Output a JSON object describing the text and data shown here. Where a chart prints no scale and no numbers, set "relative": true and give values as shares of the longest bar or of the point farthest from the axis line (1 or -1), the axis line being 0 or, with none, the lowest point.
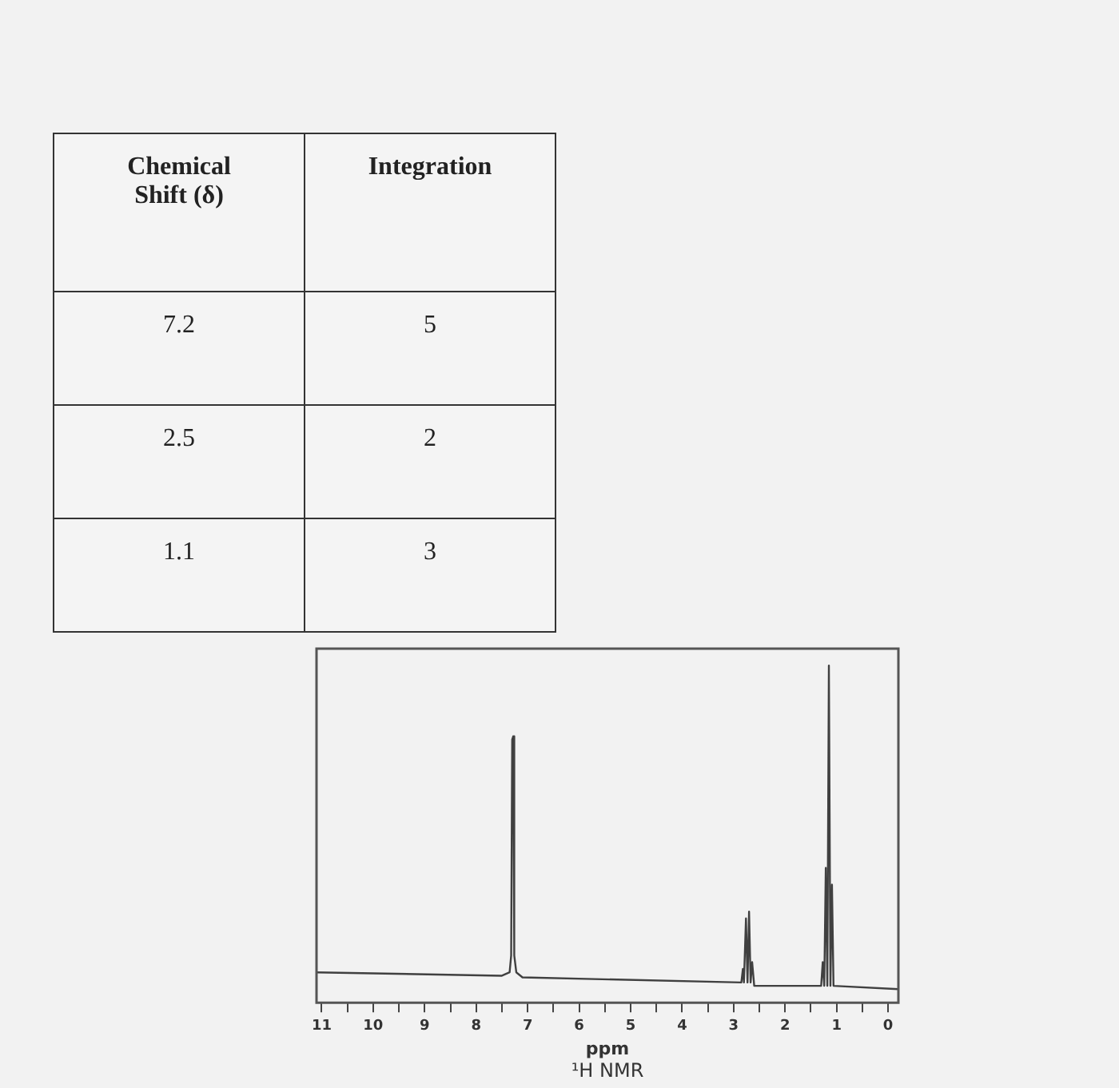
{
  "chart_data": [
    {
      "type": "other",
      "annotations": [
        "Chemical Shift (δ)",
        "Integration",
        "7.2",
        "5",
        "2.5",
        "2",
        "1.1",
        "3"
      ]
    },
    {
      "type": "line",
      "title": "¹H NMR",
      "xlabel": "ppm",
      "relative": true,
      "color": "#404040",
      "marker": "none",
      "x": [
        11.1,
        7.5,
        7.35,
        7.32,
        7.3,
        7.28,
        7.26,
        7.22,
        7.1,
        2.85,
        2.82,
        2.8,
        2.76,
        2.73,
        2.7,
        2.67,
        2.64,
        2.6,
        1.3,
        1.27,
        1.24,
        1.21,
        1.18,
        1.15,
        1.12,
        1.09,
        1.06,
        -0.2
      ],
      "values": [
        0.09,
        0.08,
        0.09,
        0.14,
        0.78,
        0.79,
        0.14,
        0.09,
        0.075,
        0.06,
        0.1,
        0.06,
        0.25,
        0.06,
        0.27,
        0.06,
        0.12,
        0.05,
        0.05,
        0.12,
        0.05,
        0.4,
        0.05,
        1.0,
        0.05,
        0.35,
        0.05,
        0.04
      ],
      "xlim": [
        11.1,
        -0.2
      ],
      "xticks": [
        11,
        {
          "value": 10.5,
          "label": null
        },
        10,
        {
          "value": 9.5,
          "label": null
        },
        9,
        {
          "value": 8.5,
          "label": null
        },
        8,
        {
          "value": 7.5,
          "label": null
        },
        7,
        {
          "value": 6.5,
          "label": null
        },
        6,
        {
          "value": 5.5,
          "label": null
        },
        5,
        {
          "value": 4.5,
          "label": null
        },
        4,
        {
          "value": 3.5,
          "label": null
        },
        3,
        {
          "value": 2.5,
          "label": null
        },
        2,
        {
          "value": 1.5,
          "label": null
        },
        1,
        {
          "value": 0.5,
          "label": null
        },
        0
      ],
      "tick_labels": "x",
      "grid": false,
      "legend": false
    }
  ]
}
